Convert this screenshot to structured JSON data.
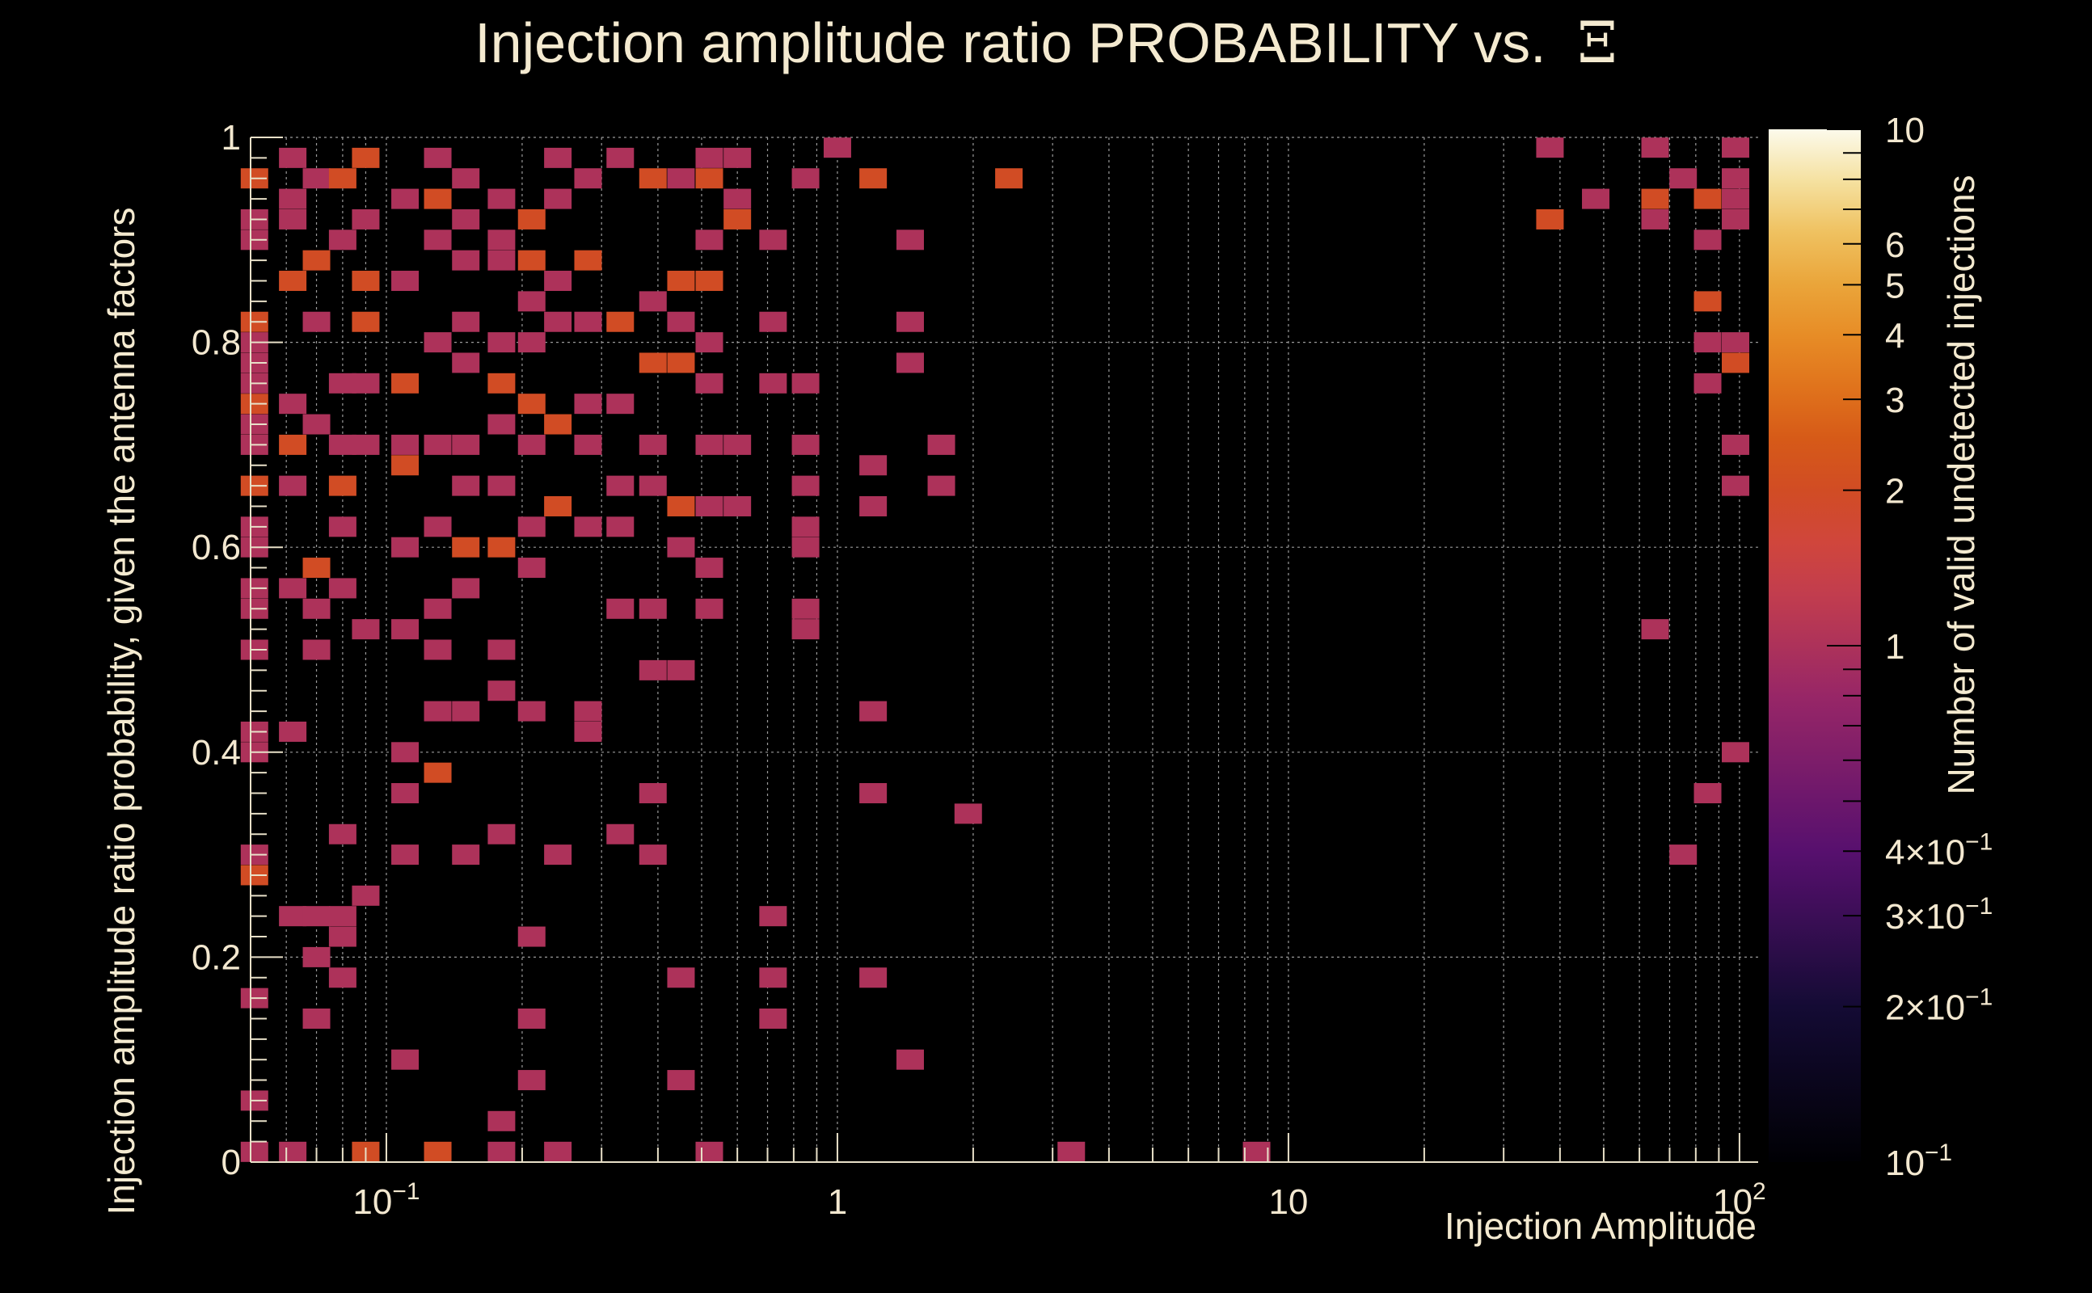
{
  "chart_data": {
    "type": "heatmap",
    "title": "Injection amplitude ratio PROBABILITY vs.",
    "title_symbol": "Ξ",
    "xlabel": "Injection Amplitude",
    "ylabel": "Injection amplitude ratio probability, given the antenna factors",
    "zlabel": "Number of valid undetected injections",
    "x_scale": "log",
    "xlim": [
      0.05,
      110
    ],
    "ylim": [
      0,
      1
    ],
    "z_scale": "log",
    "zlim": [
      0.1,
      10
    ],
    "x_ticks": [
      {
        "value": 0.1,
        "label": "10",
        "exp": "−1"
      },
      {
        "value": 1,
        "label": "1",
        "exp": ""
      },
      {
        "value": 10,
        "label": "10",
        "exp": ""
      },
      {
        "value": 100,
        "label": "10",
        "exp": "2"
      }
    ],
    "y_ticks": [
      {
        "value": 0,
        "label": "0"
      },
      {
        "value": 0.2,
        "label": "0.2"
      },
      {
        "value": 0.4,
        "label": "0.4"
      },
      {
        "value": 0.6,
        "label": "0.6"
      },
      {
        "value": 0.8,
        "label": "0.8"
      },
      {
        "value": 1,
        "label": "1"
      }
    ],
    "z_ticks": [
      {
        "value": 10,
        "label": "10",
        "exp": ""
      },
      {
        "value": 6,
        "label": "6",
        "exp": ""
      },
      {
        "value": 5,
        "label": "5",
        "exp": ""
      },
      {
        "value": 4,
        "label": "4",
        "exp": ""
      },
      {
        "value": 3,
        "label": "3",
        "exp": ""
      },
      {
        "value": 2,
        "label": "2",
        "exp": ""
      },
      {
        "value": 1,
        "label": "1",
        "exp": ""
      },
      {
        "value": 0.4,
        "label": "4×10",
        "exp": "−1"
      },
      {
        "value": 0.3,
        "label": "3×10",
        "exp": "−1"
      },
      {
        "value": 0.2,
        "label": "2×10",
        "exp": "−1"
      },
      {
        "value": 0.1,
        "label": "10",
        "exp": "−1"
      }
    ],
    "cells": [
      [
        0.051,
        0.96,
        2
      ],
      [
        0.051,
        0.92,
        1
      ],
      [
        0.051,
        0.9,
        1
      ],
      [
        0.051,
        0.82,
        2
      ],
      [
        0.051,
        0.8,
        1
      ],
      [
        0.051,
        0.78,
        1
      ],
      [
        0.051,
        0.76,
        1
      ],
      [
        0.051,
        0.74,
        2
      ],
      [
        0.051,
        0.72,
        1
      ],
      [
        0.051,
        0.7,
        1
      ],
      [
        0.051,
        0.66,
        2
      ],
      [
        0.051,
        0.62,
        1
      ],
      [
        0.051,
        0.6,
        1
      ],
      [
        0.051,
        0.56,
        1
      ],
      [
        0.051,
        0.54,
        1
      ],
      [
        0.051,
        0.5,
        1
      ],
      [
        0.051,
        0.42,
        1
      ],
      [
        0.051,
        0.4,
        1
      ],
      [
        0.051,
        0.3,
        1
      ],
      [
        0.051,
        0.28,
        2
      ],
      [
        0.051,
        0.16,
        1
      ],
      [
        0.051,
        0.06,
        1
      ],
      [
        0.051,
        0.01,
        1
      ],
      [
        0.062,
        0.98,
        1
      ],
      [
        0.062,
        0.94,
        1
      ],
      [
        0.062,
        0.92,
        1
      ],
      [
        0.062,
        0.86,
        2
      ],
      [
        0.062,
        0.74,
        1
      ],
      [
        0.062,
        0.7,
        2
      ],
      [
        0.062,
        0.66,
        1
      ],
      [
        0.062,
        0.56,
        1
      ],
      [
        0.062,
        0.42,
        1
      ],
      [
        0.062,
        0.24,
        1
      ],
      [
        0.062,
        0.01,
        1
      ],
      [
        0.07,
        0.96,
        1
      ],
      [
        0.07,
        0.88,
        2
      ],
      [
        0.07,
        0.82,
        1
      ],
      [
        0.07,
        0.72,
        1
      ],
      [
        0.07,
        0.58,
        2
      ],
      [
        0.07,
        0.54,
        1
      ],
      [
        0.07,
        0.5,
        1
      ],
      [
        0.07,
        0.24,
        1
      ],
      [
        0.07,
        0.2,
        1
      ],
      [
        0.07,
        0.14,
        1
      ],
      [
        0.08,
        0.96,
        2
      ],
      [
        0.08,
        0.9,
        1
      ],
      [
        0.08,
        0.76,
        1
      ],
      [
        0.08,
        0.7,
        1
      ],
      [
        0.08,
        0.66,
        2
      ],
      [
        0.08,
        0.62,
        1
      ],
      [
        0.08,
        0.56,
        1
      ],
      [
        0.08,
        0.32,
        1
      ],
      [
        0.08,
        0.24,
        1
      ],
      [
        0.08,
        0.22,
        1
      ],
      [
        0.08,
        0.18,
        1
      ],
      [
        0.09,
        0.98,
        2
      ],
      [
        0.09,
        0.92,
        1
      ],
      [
        0.09,
        0.86,
        2
      ],
      [
        0.09,
        0.82,
        2
      ],
      [
        0.09,
        0.76,
        1
      ],
      [
        0.09,
        0.7,
        1
      ],
      [
        0.09,
        0.52,
        1
      ],
      [
        0.09,
        0.26,
        1
      ],
      [
        0.09,
        0.01,
        2
      ],
      [
        0.11,
        0.94,
        1
      ],
      [
        0.11,
        0.86,
        1
      ],
      [
        0.11,
        0.76,
        2
      ],
      [
        0.11,
        0.7,
        1
      ],
      [
        0.11,
        0.68,
        2
      ],
      [
        0.11,
        0.6,
        1
      ],
      [
        0.11,
        0.52,
        1
      ],
      [
        0.11,
        0.4,
        1
      ],
      [
        0.11,
        0.36,
        1
      ],
      [
        0.11,
        0.3,
        1
      ],
      [
        0.11,
        0.1,
        1
      ],
      [
        0.13,
        0.98,
        1
      ],
      [
        0.13,
        0.94,
        2
      ],
      [
        0.13,
        0.9,
        1
      ],
      [
        0.13,
        0.8,
        1
      ],
      [
        0.13,
        0.7,
        1
      ],
      [
        0.13,
        0.62,
        1
      ],
      [
        0.13,
        0.54,
        1
      ],
      [
        0.13,
        0.5,
        1
      ],
      [
        0.13,
        0.44,
        1
      ],
      [
        0.13,
        0.38,
        2
      ],
      [
        0.13,
        0.01,
        2
      ],
      [
        0.15,
        0.96,
        1
      ],
      [
        0.15,
        0.92,
        1
      ],
      [
        0.15,
        0.88,
        1
      ],
      [
        0.15,
        0.82,
        1
      ],
      [
        0.15,
        0.78,
        1
      ],
      [
        0.15,
        0.7,
        1
      ],
      [
        0.15,
        0.66,
        1
      ],
      [
        0.15,
        0.6,
        2
      ],
      [
        0.15,
        0.56,
        1
      ],
      [
        0.15,
        0.44,
        1
      ],
      [
        0.15,
        0.3,
        1
      ],
      [
        0.18,
        0.94,
        1
      ],
      [
        0.18,
        0.9,
        1
      ],
      [
        0.18,
        0.88,
        1
      ],
      [
        0.18,
        0.8,
        1
      ],
      [
        0.18,
        0.76,
        2
      ],
      [
        0.18,
        0.72,
        1
      ],
      [
        0.18,
        0.66,
        1
      ],
      [
        0.18,
        0.6,
        2
      ],
      [
        0.18,
        0.5,
        1
      ],
      [
        0.18,
        0.46,
        1
      ],
      [
        0.18,
        0.32,
        1
      ],
      [
        0.18,
        0.04,
        1
      ],
      [
        0.18,
        0.01,
        1
      ],
      [
        0.21,
        0.92,
        2
      ],
      [
        0.21,
        0.88,
        2
      ],
      [
        0.21,
        0.84,
        1
      ],
      [
        0.21,
        0.8,
        1
      ],
      [
        0.21,
        0.74,
        2
      ],
      [
        0.21,
        0.7,
        1
      ],
      [
        0.21,
        0.62,
        1
      ],
      [
        0.21,
        0.58,
        1
      ],
      [
        0.21,
        0.44,
        1
      ],
      [
        0.21,
        0.22,
        1
      ],
      [
        0.21,
        0.14,
        1
      ],
      [
        0.21,
        0.08,
        1
      ],
      [
        0.24,
        0.98,
        1
      ],
      [
        0.24,
        0.94,
        1
      ],
      [
        0.24,
        0.86,
        1
      ],
      [
        0.24,
        0.82,
        1
      ],
      [
        0.24,
        0.72,
        2
      ],
      [
        0.24,
        0.64,
        2
      ],
      [
        0.24,
        0.3,
        1
      ],
      [
        0.24,
        0.01,
        1
      ],
      [
        0.28,
        0.96,
        1
      ],
      [
        0.28,
        0.88,
        2
      ],
      [
        0.28,
        0.82,
        1
      ],
      [
        0.28,
        0.74,
        1
      ],
      [
        0.28,
        0.7,
        1
      ],
      [
        0.28,
        0.62,
        1
      ],
      [
        0.28,
        0.44,
        1
      ],
      [
        0.28,
        0.42,
        1
      ],
      [
        0.33,
        0.98,
        1
      ],
      [
        0.33,
        0.82,
        2
      ],
      [
        0.33,
        0.74,
        1
      ],
      [
        0.33,
        0.66,
        1
      ],
      [
        0.33,
        0.62,
        1
      ],
      [
        0.33,
        0.54,
        1
      ],
      [
        0.33,
        0.32,
        1
      ],
      [
        0.39,
        0.96,
        2
      ],
      [
        0.39,
        0.84,
        1
      ],
      [
        0.39,
        0.78,
        2
      ],
      [
        0.39,
        0.7,
        1
      ],
      [
        0.39,
        0.66,
        1
      ],
      [
        0.39,
        0.54,
        1
      ],
      [
        0.39,
        0.48,
        1
      ],
      [
        0.39,
        0.36,
        1
      ],
      [
        0.39,
        0.3,
        1
      ],
      [
        0.45,
        0.96,
        1
      ],
      [
        0.45,
        0.86,
        2
      ],
      [
        0.45,
        0.82,
        1
      ],
      [
        0.45,
        0.78,
        2
      ],
      [
        0.45,
        0.64,
        2
      ],
      [
        0.45,
        0.6,
        1
      ],
      [
        0.45,
        0.48,
        1
      ],
      [
        0.45,
        0.18,
        1
      ],
      [
        0.45,
        0.08,
        1
      ],
      [
        0.52,
        0.98,
        1
      ],
      [
        0.52,
        0.96,
        2
      ],
      [
        0.52,
        0.9,
        1
      ],
      [
        0.52,
        0.86,
        2
      ],
      [
        0.52,
        0.8,
        1
      ],
      [
        0.52,
        0.76,
        1
      ],
      [
        0.52,
        0.7,
        1
      ],
      [
        0.52,
        0.64,
        1
      ],
      [
        0.52,
        0.58,
        1
      ],
      [
        0.52,
        0.54,
        1
      ],
      [
        0.52,
        0.01,
        1
      ],
      [
        0.6,
        0.98,
        1
      ],
      [
        0.6,
        0.94,
        1
      ],
      [
        0.6,
        0.92,
        2
      ],
      [
        0.6,
        0.7,
        1
      ],
      [
        0.6,
        0.64,
        1
      ],
      [
        0.72,
        0.9,
        1
      ],
      [
        0.72,
        0.82,
        1
      ],
      [
        0.72,
        0.76,
        1
      ],
      [
        0.72,
        0.24,
        1
      ],
      [
        0.72,
        0.18,
        1
      ],
      [
        0.72,
        0.14,
        1
      ],
      [
        0.85,
        0.96,
        1
      ],
      [
        0.85,
        0.76,
        1
      ],
      [
        0.85,
        0.7,
        1
      ],
      [
        0.85,
        0.66,
        1
      ],
      [
        0.85,
        0.62,
        1
      ],
      [
        0.85,
        0.6,
        1
      ],
      [
        0.85,
        0.54,
        1
      ],
      [
        0.85,
        0.52,
        1
      ],
      [
        1.0,
        0.99,
        1
      ],
      [
        1.2,
        0.96,
        2
      ],
      [
        1.2,
        0.68,
        1
      ],
      [
        1.2,
        0.64,
        1
      ],
      [
        1.2,
        0.44,
        1
      ],
      [
        1.2,
        0.36,
        1
      ],
      [
        1.2,
        0.18,
        1
      ],
      [
        1.45,
        0.9,
        1
      ],
      [
        1.45,
        0.82,
        1
      ],
      [
        1.45,
        0.78,
        1
      ],
      [
        1.45,
        0.1,
        1
      ],
      [
        1.7,
        0.7,
        1
      ],
      [
        1.7,
        0.66,
        1
      ],
      [
        1.95,
        0.34,
        1
      ],
      [
        2.4,
        0.96,
        2
      ],
      [
        3.3,
        0.01,
        1
      ],
      [
        8.5,
        0.01,
        1
      ],
      [
        38,
        0.99,
        1
      ],
      [
        38,
        0.92,
        2
      ],
      [
        48,
        0.94,
        1
      ],
      [
        65,
        0.99,
        1
      ],
      [
        65,
        0.94,
        2
      ],
      [
        65,
        0.92,
        1
      ],
      [
        65,
        0.52,
        1
      ],
      [
        75,
        0.96,
        1
      ],
      [
        75,
        0.3,
        1
      ],
      [
        85,
        0.94,
        2
      ],
      [
        85,
        0.9,
        1
      ],
      [
        85,
        0.84,
        2
      ],
      [
        85,
        0.8,
        1
      ],
      [
        85,
        0.76,
        1
      ],
      [
        85,
        0.36,
        1
      ],
      [
        98,
        0.99,
        1
      ],
      [
        98,
        0.96,
        1
      ],
      [
        98,
        0.94,
        1
      ],
      [
        98,
        0.92,
        1
      ],
      [
        98,
        0.8,
        1
      ],
      [
        98,
        0.78,
        2
      ],
      [
        98,
        0.7,
        1
      ],
      [
        98,
        0.66,
        1
      ],
      [
        98,
        0.4,
        1
      ]
    ]
  }
}
